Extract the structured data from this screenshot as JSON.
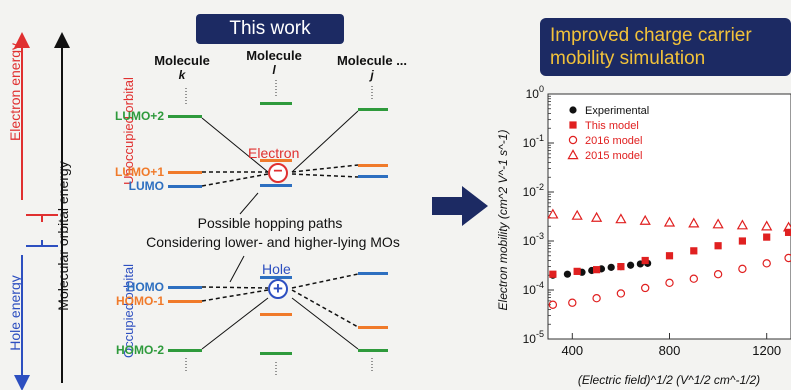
{
  "diagram": {
    "banner": "This work",
    "molecules": [
      {
        "label": "Molecule",
        "symbol": "k"
      },
      {
        "label": "Molecule",
        "symbol": "l"
      },
      {
        "label": "Molecule ...",
        "symbol": "j"
      }
    ],
    "axis_electron_energy": "Electron energy",
    "axis_hole_energy": "Hole energy",
    "axis_molecular_orbital_energy": "Molecular orbital energy",
    "unoccupied_orbital": "Unoccupied orbital",
    "occupied_orbital": "Occupied orbital",
    "levels": {
      "lumo2": "LUMO+2",
      "lumo1": "LUMO+1",
      "lumo": "LUMO",
      "homo": "HOMO",
      "homo1": "HOMO-1",
      "homo2": "HOMO-2"
    },
    "electron_label": "Electron",
    "electron_symbol": "−",
    "hole_label": "Hole",
    "hole_symbol": "+",
    "hopping_line1": "Possible hopping paths",
    "hopping_line2": "Considering lower- and higher-lying MOs",
    "colors": {
      "lumo2": "#2e9a3c",
      "lumo1": "#f07a2a",
      "lumo": "#2d6fc0",
      "homo": "#2d6fc0",
      "homo1": "#f07a2a",
      "homo2": "#2e9a3c",
      "electron": "#e03030",
      "hole": "#2d4fc0",
      "banner": "#1c2a63"
    }
  },
  "chart_banner": "Improved charge carrier mobility simulation",
  "chart_data": {
    "type": "scatter",
    "xscale": "linear",
    "yscale": "log",
    "xlim": [
      300,
      1300
    ],
    "ylim": [
      1e-05,
      1
    ],
    "xticks": [
      400,
      800,
      1200
    ],
    "xtick_labels": [
      "400",
      "800",
      "1200"
    ],
    "ytick_labels": [
      "10^0",
      "10^-1",
      "10^-2",
      "10^-3",
      "10^-4",
      "10^-5"
    ],
    "xlabel": "(Electric field)^1/2 (V^1/2 cm^-1/2)",
    "ylabel": "Electron mobility (cm^2 V^-1 s^-1)",
    "series": [
      {
        "name": "Experimental",
        "marker": "circle-filled",
        "color": "#111111",
        "x": [
          320,
          380,
          440,
          480,
          520,
          560,
          600,
          640,
          680,
          710
        ],
        "y": [
          0.0002,
          0.00021,
          0.00023,
          0.00025,
          0.00027,
          0.00029,
          0.0003,
          0.00032,
          0.00034,
          0.00035
        ]
      },
      {
        "name": "This model",
        "marker": "square-filled",
        "color": "#e02020",
        "x": [
          320,
          420,
          500,
          600,
          700,
          800,
          900,
          1000,
          1100,
          1200,
          1290
        ],
        "y": [
          0.00021,
          0.00024,
          0.00026,
          0.0003,
          0.0004,
          0.0005,
          0.00063,
          0.0008,
          0.001,
          0.0012,
          0.0015
        ]
      },
      {
        "name": "2016 model",
        "marker": "circle-open",
        "color": "#e02020",
        "x": [
          320,
          400,
          500,
          600,
          700,
          800,
          900,
          1000,
          1100,
          1200,
          1290
        ],
        "y": [
          5e-05,
          5.5e-05,
          6.8e-05,
          8.5e-05,
          0.00011,
          0.00014,
          0.00017,
          0.00021,
          0.00027,
          0.00035,
          0.00045
        ]
      },
      {
        "name": "2015 model",
        "marker": "triangle-open",
        "color": "#e02020",
        "x": [
          320,
          420,
          500,
          600,
          700,
          800,
          900,
          1000,
          1100,
          1200,
          1290
        ],
        "y": [
          0.0035,
          0.0033,
          0.003,
          0.0028,
          0.0026,
          0.0024,
          0.0023,
          0.0022,
          0.0021,
          0.002,
          0.0019
        ]
      }
    ],
    "legend": "top-left",
    "grid": false
  }
}
